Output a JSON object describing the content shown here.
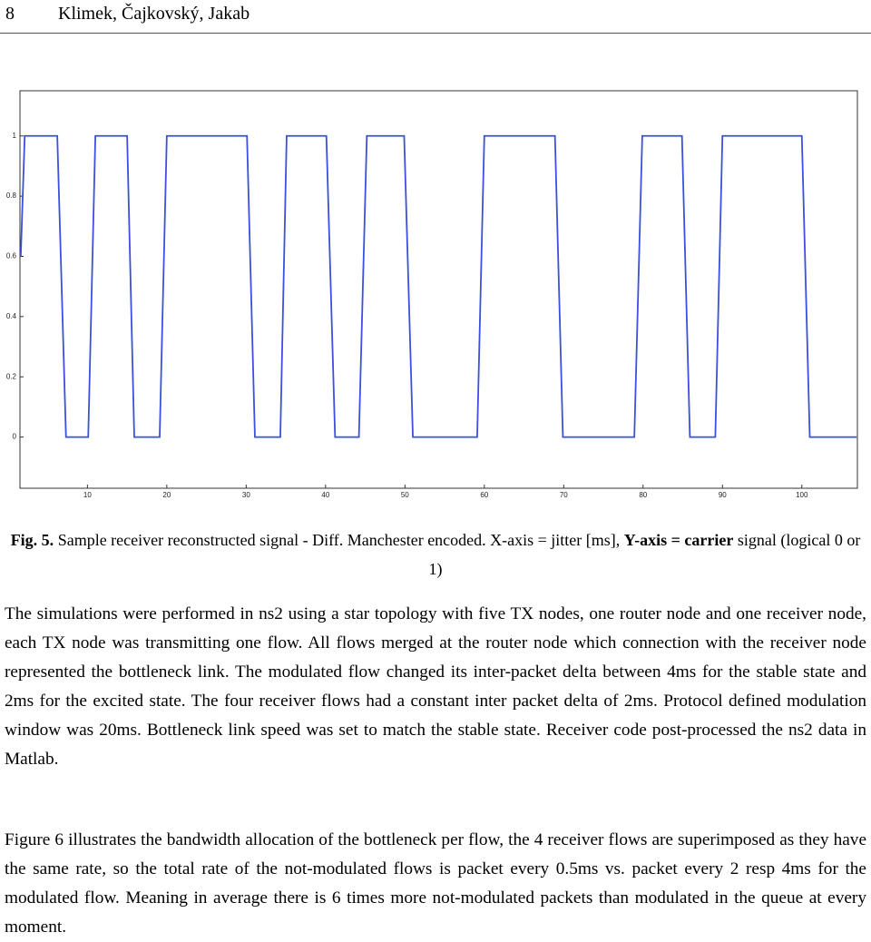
{
  "header": {
    "page": "8",
    "authors": "Klimek, Čajkovský, Jakab"
  },
  "chart_data": {
    "type": "line",
    "x": [
      1.6,
      2.1,
      6.2,
      7.3,
      10.1,
      11.0,
      15.0,
      15.9,
      19.1,
      20.0,
      30.1,
      31.1,
      34.3,
      35.1,
      40.1,
      41.2,
      44.2,
      45.2,
      49.9,
      51.0,
      59.1,
      60.0,
      68.9,
      69.9,
      78.9,
      79.9,
      84.9,
      85.9,
      89.1,
      90.0,
      100.0,
      101.0,
      106.9
    ],
    "series": [
      {
        "color": "#3b4fe0",
        "values": [
          0.6,
          1,
          1,
          0,
          0,
          1,
          1,
          0,
          0,
          1,
          1,
          0,
          0,
          1,
          1,
          0,
          0,
          1,
          1,
          0,
          0,
          1,
          1,
          0,
          0,
          1,
          1,
          0,
          0,
          1,
          1,
          0,
          0
        ]
      }
    ],
    "xlim": [
      1.5,
      107
    ],
    "ylim": [
      -0.17,
      1.15
    ],
    "xticks": [
      10,
      20,
      30,
      40,
      50,
      60,
      70,
      80,
      90,
      100
    ],
    "yticks": [
      0,
      0.2,
      0.4,
      0.6,
      0.8,
      1
    ]
  },
  "caption": {
    "label": "Fig. 5.",
    "text": "Sample receiver reconstructed signal - Diff. Manchester encoded. X-axis = jitter [ms],",
    "bold": "Y-axis = carrier",
    "rest": "signal (logical 0 or 1)"
  },
  "paragraphs": [
    "The simulations were performed in ns2 using a star topology with five TX nodes, one router node and one receiver node, each TX node was transmitting one flow. All flows merged at the router node which connection with the receiver node represented the bottleneck link. The modulated flow changed its inter-packet delta between 4ms for the stable state and 2ms for the excited state. The four receiver flows had a constant inter packet delta of 2ms. Protocol defined modulation window was 20ms. Bottleneck link speed was set to match the stable state. Receiver code post-processed the ns2 data in Matlab.",
    "Figure 6 illustrates the bandwidth allocation of the bottleneck per flow, the 4 receiver flows are superimposed as they have the same rate, so the total rate of the not-modulated flows is packet every 0.5ms vs. packet every 2 resp 4ms for the modulated flow. Meaning in average there is 6 times more not-modulated packets than modulated in the queue at every moment."
  ]
}
